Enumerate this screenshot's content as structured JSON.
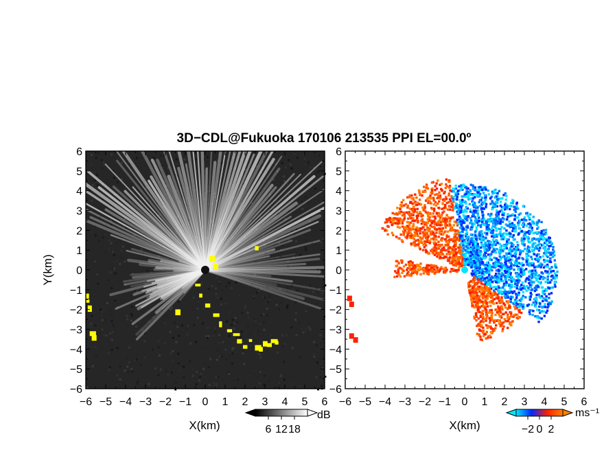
{
  "title": "3D−CDL@Fukuoka 170106 213535 PPI EL=00.0º",
  "colors": {
    "background": "#ffffff",
    "snr_background": "#262626",
    "snr_high": "#f2f2f2",
    "hard_target": "#ffff00",
    "doppler_negative": "#00e5ff",
    "doppler_negative_strong": "#0026ff",
    "doppler_positive": "#ff8000",
    "doppler_positive_strong": "#ff2000"
  },
  "panels": [
    {
      "name": "snr",
      "xlabel": "X(km)",
      "ylabel": "Y(km)",
      "xlim": [
        -6,
        6
      ],
      "ylim": [
        -6,
        6
      ],
      "x_ticks": [
        "−6",
        "−5",
        "−4",
        "−3",
        "−2",
        "−1",
        "0",
        "1",
        "2",
        "3",
        "4",
        "5",
        "6"
      ],
      "y_ticks": [
        "6",
        "5",
        "4",
        "3",
        "2",
        "1",
        "0",
        "−1",
        "−2",
        "−3",
        "−4",
        "−5",
        "−6"
      ],
      "colorbar": {
        "unit": "dB",
        "tick_labels": [
          "6",
          "12",
          "18"
        ],
        "ticks": [
          6,
          12,
          18
        ],
        "range": [
          0,
          24
        ],
        "colors": [
          "#000000",
          "#ffffff"
        ]
      }
    },
    {
      "name": "doppler",
      "xlabel": "X(km)",
      "ylabel": "",
      "xlim": [
        -6,
        6
      ],
      "ylim": [
        -6,
        6
      ],
      "x_ticks": [
        "−6",
        "−5",
        "−4",
        "−3",
        "−2",
        "−1",
        "0",
        "1",
        "2",
        "3",
        "4",
        "5",
        "6"
      ],
      "y_ticks": [
        "6",
        "5",
        "4",
        "3",
        "2",
        "1",
        "0",
        "−1",
        "−2",
        "−3",
        "−4",
        "−5",
        "−6"
      ],
      "colorbar": {
        "unit": "ms⁻¹",
        "tick_labels": [
          "−2",
          "0",
          "2"
        ],
        "ticks": [
          -2,
          0,
          2
        ],
        "range": [
          -4,
          4
        ],
        "colors": [
          "#00e5ff",
          "#0026ff",
          "#ff2000",
          "#ff8000"
        ]
      }
    }
  ],
  "chart_data": [
    {
      "type": "heatmap",
      "title": "3D−CDL@Fukuoka 170106 213535 PPI EL=00.0º",
      "xlabel": "X(km)",
      "ylabel": "Y(km)",
      "xlim": [
        -6,
        6
      ],
      "ylim": [
        -6,
        6
      ],
      "unit": "dB",
      "color_range": [
        0,
        24
      ],
      "colorbar_ticks": [
        6,
        12,
        18
      ],
      "wedge_azimuth_deg": [
        -70,
        70
      ],
      "hard_target_points_km": [
        [
          -5.9,
          -1.3
        ],
        [
          -5.9,
          -1.6
        ],
        [
          -5.8,
          -1.9
        ],
        [
          -5.7,
          -3.2
        ],
        [
          -5.6,
          -3.4
        ],
        [
          -0.4,
          -0.8
        ],
        [
          -0.2,
          -1.3
        ],
        [
          0.1,
          -1.8
        ],
        [
          0.5,
          -2.3
        ],
        [
          0.8,
          -2.7
        ],
        [
          1.2,
          -3.1
        ],
        [
          1.5,
          -3.3
        ],
        [
          1.7,
          -3.6
        ],
        [
          2.0,
          -3.9
        ],
        [
          2.3,
          -3.6
        ],
        [
          2.6,
          -3.9
        ],
        [
          2.8,
          -4.0
        ],
        [
          3.0,
          -3.7
        ],
        [
          3.2,
          -3.8
        ],
        [
          3.4,
          -3.6
        ],
        [
          3.6,
          -3.7
        ],
        [
          0.3,
          0.6
        ],
        [
          0.5,
          0.2
        ],
        [
          2.6,
          1.1
        ],
        [
          -1.4,
          -2.1
        ]
      ]
    },
    {
      "type": "heatmap",
      "title": "3D−CDL@Fukuoka 170106 213535 PPI EL=00.0º",
      "xlabel": "X(km)",
      "ylabel": "",
      "xlim": [
        -6,
        6
      ],
      "ylim": [
        -6,
        6
      ],
      "unit": "ms⁻¹",
      "color_range": [
        -4,
        4
      ],
      "colorbar_ticks": [
        -2,
        0,
        2
      ],
      "sectors": [
        {
          "azimuth_deg": [
            -95,
            -80
          ],
          "range_km": [
            0.3,
            3.6
          ],
          "sign": "positive"
        },
        {
          "azimuth_deg": [
            -65,
            -10
          ],
          "range_km": [
            0.3,
            4.8
          ],
          "sign": "positive"
        },
        {
          "azimuth_deg": [
            -10,
            55
          ],
          "range_km": [
            0.3,
            4.4
          ],
          "sign": "negative"
        },
        {
          "azimuth_deg": [
            55,
            125
          ],
          "range_km": [
            0.3,
            4.6
          ],
          "sign": "negative"
        },
        {
          "azimuth_deg": [
            125,
            170
          ],
          "range_km": [
            0.5,
            3.6
          ],
          "sign": "positive"
        }
      ]
    }
  ]
}
